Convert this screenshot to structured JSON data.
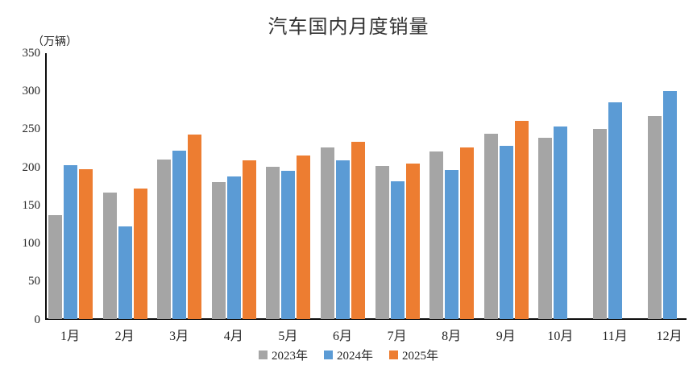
{
  "chart_data": {
    "type": "bar",
    "title": "汽车国内月度销量",
    "ylabel": "（万辆）",
    "xlabel": "",
    "categories": [
      "1月",
      "2月",
      "3月",
      "4月",
      "5月",
      "6月",
      "7月",
      "8月",
      "9月",
      "10月",
      "11月",
      "12月"
    ],
    "series": [
      {
        "name": "2023年",
        "color": "#A5A5A5",
        "values": [
          137,
          166,
          210,
          180,
          200,
          226,
          201,
          220,
          243,
          238,
          250,
          267
        ]
      },
      {
        "name": "2024年",
        "color": "#5B9BD5",
        "values": [
          202,
          122,
          221,
          187,
          195,
          209,
          181,
          196,
          228,
          253,
          285,
          300
        ]
      },
      {
        "name": "2025年",
        "color": "#ED7D31",
        "values": [
          197,
          171,
          242,
          209,
          215,
          233,
          204,
          226,
          260,
          null,
          null,
          null
        ]
      }
    ],
    "ylim": [
      0,
      350
    ],
    "yticks": [
      0,
      50,
      100,
      150,
      200,
      250,
      300,
      350
    ],
    "grid": false,
    "legend_position": "bottom"
  },
  "colors": {
    "axis": "#0d0d0d",
    "text": "#262626",
    "background": "#ffffff"
  }
}
